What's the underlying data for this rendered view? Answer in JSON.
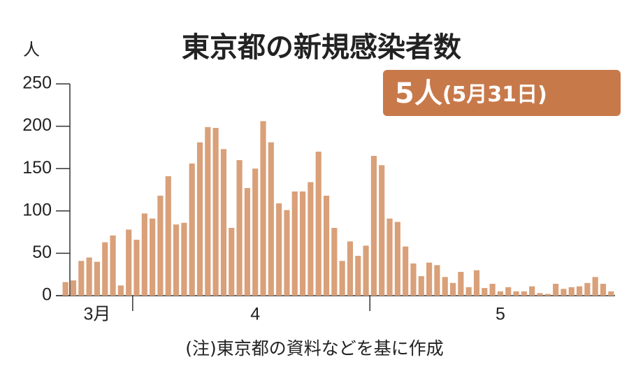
{
  "chart_data": {
    "type": "bar",
    "title": "東京都の新規感染者数",
    "y_unit": "人",
    "callout": {
      "value": "5人",
      "date": "(5月31日)"
    },
    "note": "(注)東京都の資料などを基に作成",
    "color": "#d9a079",
    "categories": [
      null,
      null,
      null,
      null,
      "3月",
      null,
      null,
      null,
      null,
      null,
      null,
      null,
      null,
      null,
      null,
      null,
      null,
      null,
      null,
      null,
      null,
      null,
      null,
      null,
      "4",
      null,
      null,
      null,
      null,
      null,
      null,
      null,
      null,
      null,
      null,
      null,
      null,
      null,
      null,
      null,
      null,
      null,
      null,
      null,
      null,
      null,
      null,
      null,
      null,
      null,
      null,
      null,
      null,
      null,
      null,
      "5",
      null,
      null,
      null,
      null,
      null,
      null,
      null,
      null,
      null,
      null,
      null,
      null,
      null,
      null
    ],
    "values": [
      16,
      18,
      41,
      45,
      40,
      63,
      71,
      12,
      78,
      66,
      97,
      91,
      118,
      141,
      84,
      86,
      156,
      181,
      199,
      198,
      173,
      80,
      160,
      127,
      150,
      206,
      181,
      109,
      101,
      123,
      123,
      134,
      170,
      118,
      80,
      41,
      64,
      47,
      59,
      165,
      154,
      91,
      87,
      58,
      38,
      23,
      39,
      36,
      22,
      15,
      28,
      10,
      30,
      9,
      14,
      5,
      10,
      5,
      5,
      11,
      3,
      2,
      14,
      8,
      10,
      11,
      15,
      22,
      14,
      5
    ],
    "ylim": [
      0,
      250
    ],
    "yticks": [
      0,
      50,
      100,
      150,
      200,
      250
    ]
  }
}
